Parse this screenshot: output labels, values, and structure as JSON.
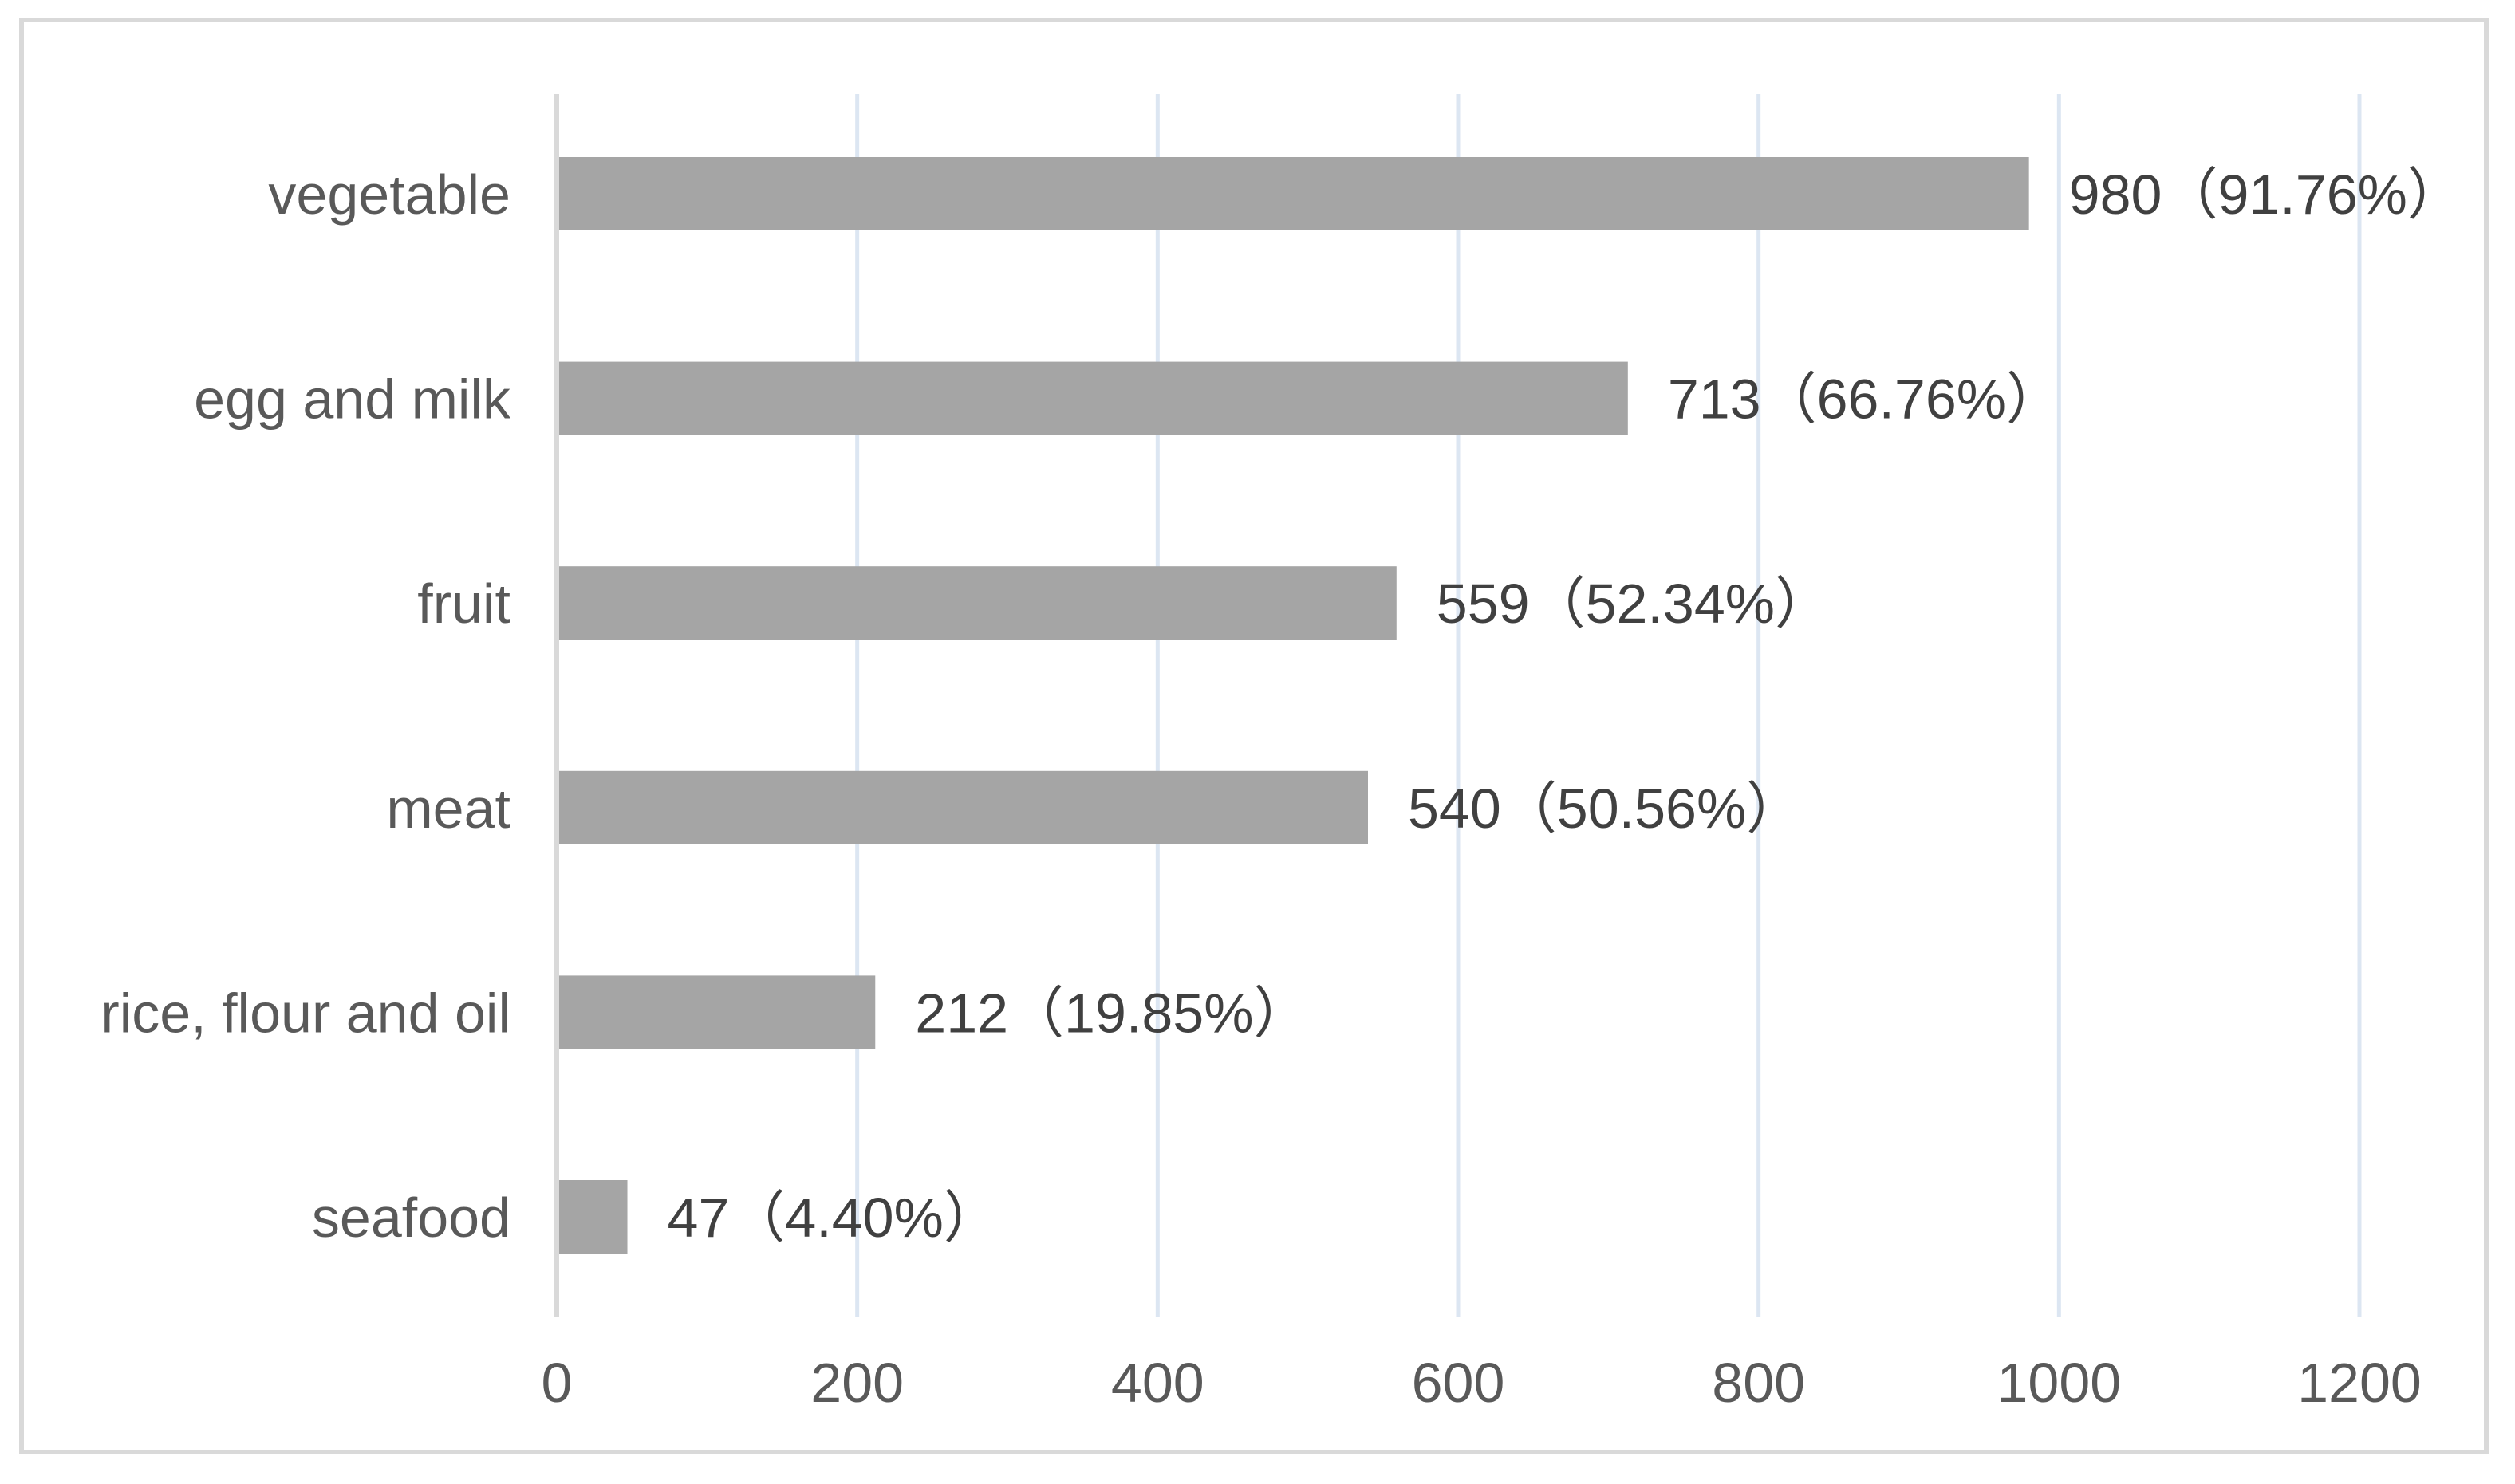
{
  "chart_data": {
    "type": "bar",
    "orientation": "horizontal",
    "title": "",
    "xlabel": "",
    "ylabel": "",
    "categories": [
      "vegetable",
      "egg and milk",
      "fruit",
      "meat",
      "rice, flour and oil",
      "seafood"
    ],
    "values": [
      980,
      713,
      559,
      540,
      212,
      47
    ],
    "data_labels": [
      "980（91.76%）",
      "713（66.76%）",
      "559（52.34%）",
      "540（50.56%）",
      "212（19.85%）",
      "47（4.40%）"
    ],
    "xlim": [
      0,
      1200
    ],
    "xticks": [
      0,
      200,
      400,
      600,
      800,
      1000,
      1200
    ],
    "xtick_labels": [
      "0",
      "200",
      "400",
      "600",
      "800",
      "1000",
      "1200"
    ],
    "grid": true,
    "legend": "none",
    "colors": {
      "bar": "#a5a5a5",
      "gridline": "#dce6f2",
      "axis_line": "#d9d9d9",
      "frame": "#d9d9d9",
      "label_text": "#595959",
      "data_label_text": "#404040"
    }
  }
}
